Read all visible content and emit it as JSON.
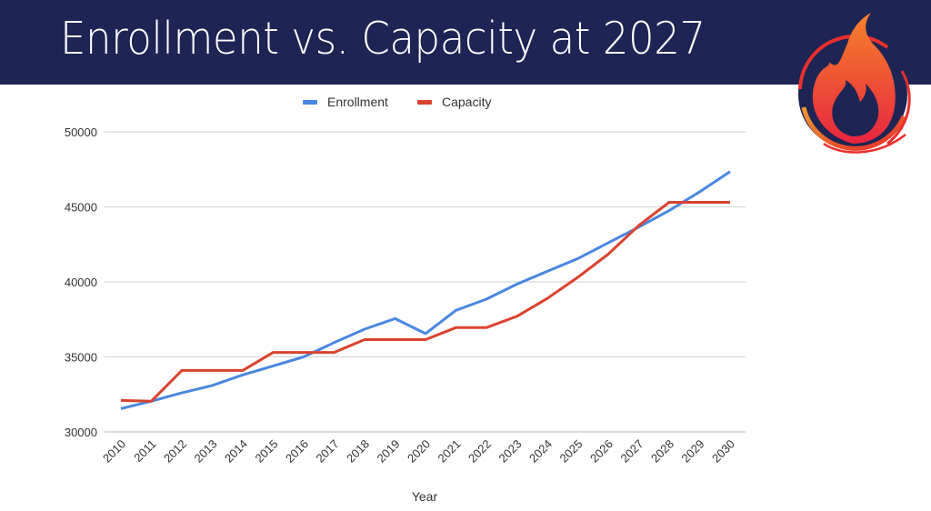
{
  "slide": {
    "title": "Enrollment vs. Capacity at 2027",
    "header_color": "#1e2454",
    "logo": "flame-logo-icon"
  },
  "chart_data": {
    "type": "line",
    "title": "",
    "xlabel": "Year",
    "ylabel": "",
    "ylim": [
      30000,
      50000
    ],
    "yticks": [
      "30000",
      "35000",
      "40000",
      "45000",
      "50000"
    ],
    "ytick_values": [
      30000,
      35000,
      40000,
      45000,
      50000
    ],
    "grid": true,
    "legend_position": "top",
    "x": [
      "2010",
      "2011",
      "2012",
      "2013",
      "2014",
      "2015",
      "2016",
      "2017",
      "2018",
      "2019",
      "2020",
      "2021",
      "2022",
      "2023",
      "2024",
      "2025",
      "2026",
      "2027",
      "2028",
      "2029",
      "2030"
    ],
    "series": [
      {
        "name": "Enrollment",
        "color": "#4a86e0",
        "values": [
          31550,
          32050,
          32600,
          33100,
          33800,
          34400,
          35000,
          35950,
          36850,
          37550,
          36550,
          38100,
          38850,
          39850,
          40700,
          41550,
          42600,
          43650,
          44750,
          46000,
          47350
        ]
      },
      {
        "name": "Capacity",
        "color": "#d9432f",
        "values": [
          32100,
          32050,
          34100,
          34100,
          34100,
          35300,
          35300,
          35300,
          36150,
          36150,
          36150,
          36950,
          36950,
          37700,
          38900,
          40300,
          41850,
          43750,
          45300,
          45300,
          45300
        ]
      }
    ]
  }
}
